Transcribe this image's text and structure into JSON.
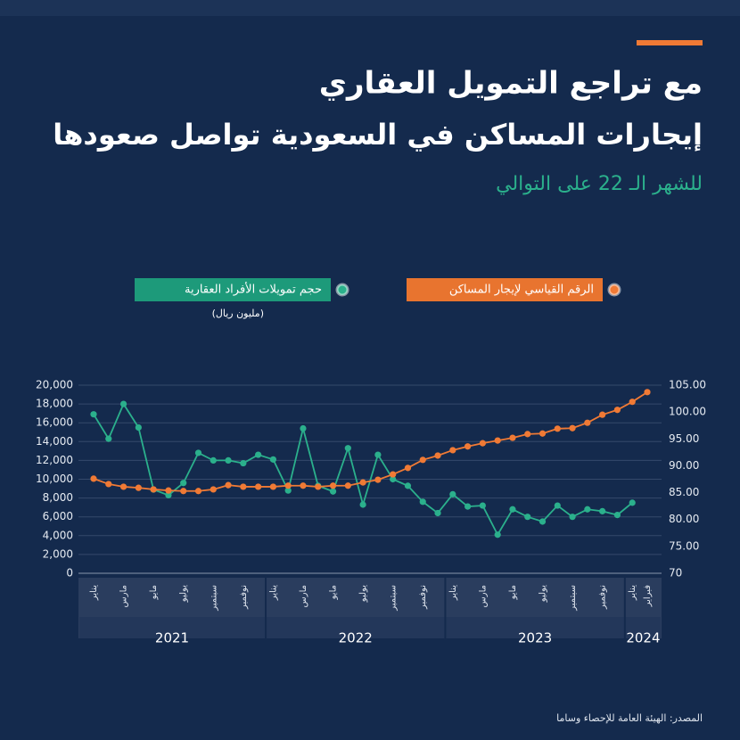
{
  "chart_data": {
    "type": "line",
    "title": "مع تراجع التمويل العقاري",
    "subtitle": "إيجارات المساكن في السعودية تواصل صعودها",
    "note": "للشهر الـ 22 على التوالي",
    "unit_label": "(مليون ريال)",
    "source": "المصدر: الهيئة العامة للإحصاء وساما",
    "categories": [
      "يناير",
      null,
      "مارس",
      null,
      "مايو",
      null,
      "يوليو",
      null,
      "سبتمبر",
      null,
      "نوفمبر",
      null,
      "يناير",
      null,
      "مارس",
      null,
      "مايو",
      null,
      "يوليو",
      null,
      "سبتمبر",
      null,
      "نوفمبر",
      null,
      "يناير",
      null,
      "مارس",
      null,
      "مايو",
      null,
      "يوليو",
      null,
      "سبتمبر",
      null,
      "نوفمبر",
      null,
      "يناير",
      "فبراير"
    ],
    "year_groups": [
      "2021",
      "2022",
      "2023",
      "2024"
    ],
    "series": [
      {
        "name": "حجم تمويلات الأفراد العقارية",
        "color": "#2bb08c",
        "axis": "y",
        "values": [
          16900,
          14300,
          18000,
          15500,
          8900,
          8300,
          9600,
          12800,
          12000,
          12000,
          11700,
          12600,
          12100,
          8800,
          15400,
          9300,
          8700,
          13300,
          7300,
          12600,
          10000,
          9300,
          7600,
          6400,
          8400,
          7100,
          7200,
          4100,
          6800,
          6000,
          5500,
          7200,
          6000,
          6800,
          6600,
          6200,
          7500,
          null
        ]
      },
      {
        "name": "الرقم القياسي لإيجار المساكن",
        "color": "#f07a35",
        "axis": "y2",
        "values": [
          87.6,
          86.6,
          86.1,
          85.9,
          85.6,
          85.4,
          85.3,
          85.3,
          85.6,
          86.4,
          86.1,
          86.1,
          86.1,
          86.3,
          86.3,
          86.1,
          86.3,
          86.3,
          86.9,
          87.4,
          88.4,
          89.6,
          91.1,
          91.9,
          92.9,
          93.6,
          94.2,
          94.7,
          95.2,
          95.9,
          96.0,
          96.9,
          97.0,
          98.0,
          99.5,
          100.4,
          101.9,
          103.7
        ]
      }
    ],
    "ylim": [
      0,
      20000
    ],
    "yticks": [
      0,
      {
        "value": 2000,
        "label": "2,000"
      },
      {
        "value": 4000,
        "label": "4,000"
      },
      {
        "value": 6000,
        "label": "6,000"
      },
      {
        "value": 8000,
        "label": "8,000"
      },
      {
        "value": 10000,
        "label": "10,000"
      },
      {
        "value": 12000,
        "label": "12,000"
      },
      {
        "value": 14000,
        "label": "14,000"
      },
      {
        "value": 16000,
        "label": "16,000"
      },
      {
        "value": 18000,
        "label": "18,000"
      },
      {
        "value": 20000,
        "label": "20,000"
      }
    ],
    "y2lim": [
      70,
      105
    ],
    "y2ticks": [
      70,
      {
        "value": 75,
        "label": "75.00"
      },
      {
        "value": 80,
        "label": "80.00"
      },
      {
        "value": 85,
        "label": "85.00"
      },
      {
        "value": 90,
        "label": "90.00"
      },
      {
        "value": 95,
        "label": "95.00"
      },
      {
        "value": 100,
        "label": "100.00"
      },
      {
        "value": 105,
        "label": "105.00"
      }
    ],
    "grid": true
  }
}
